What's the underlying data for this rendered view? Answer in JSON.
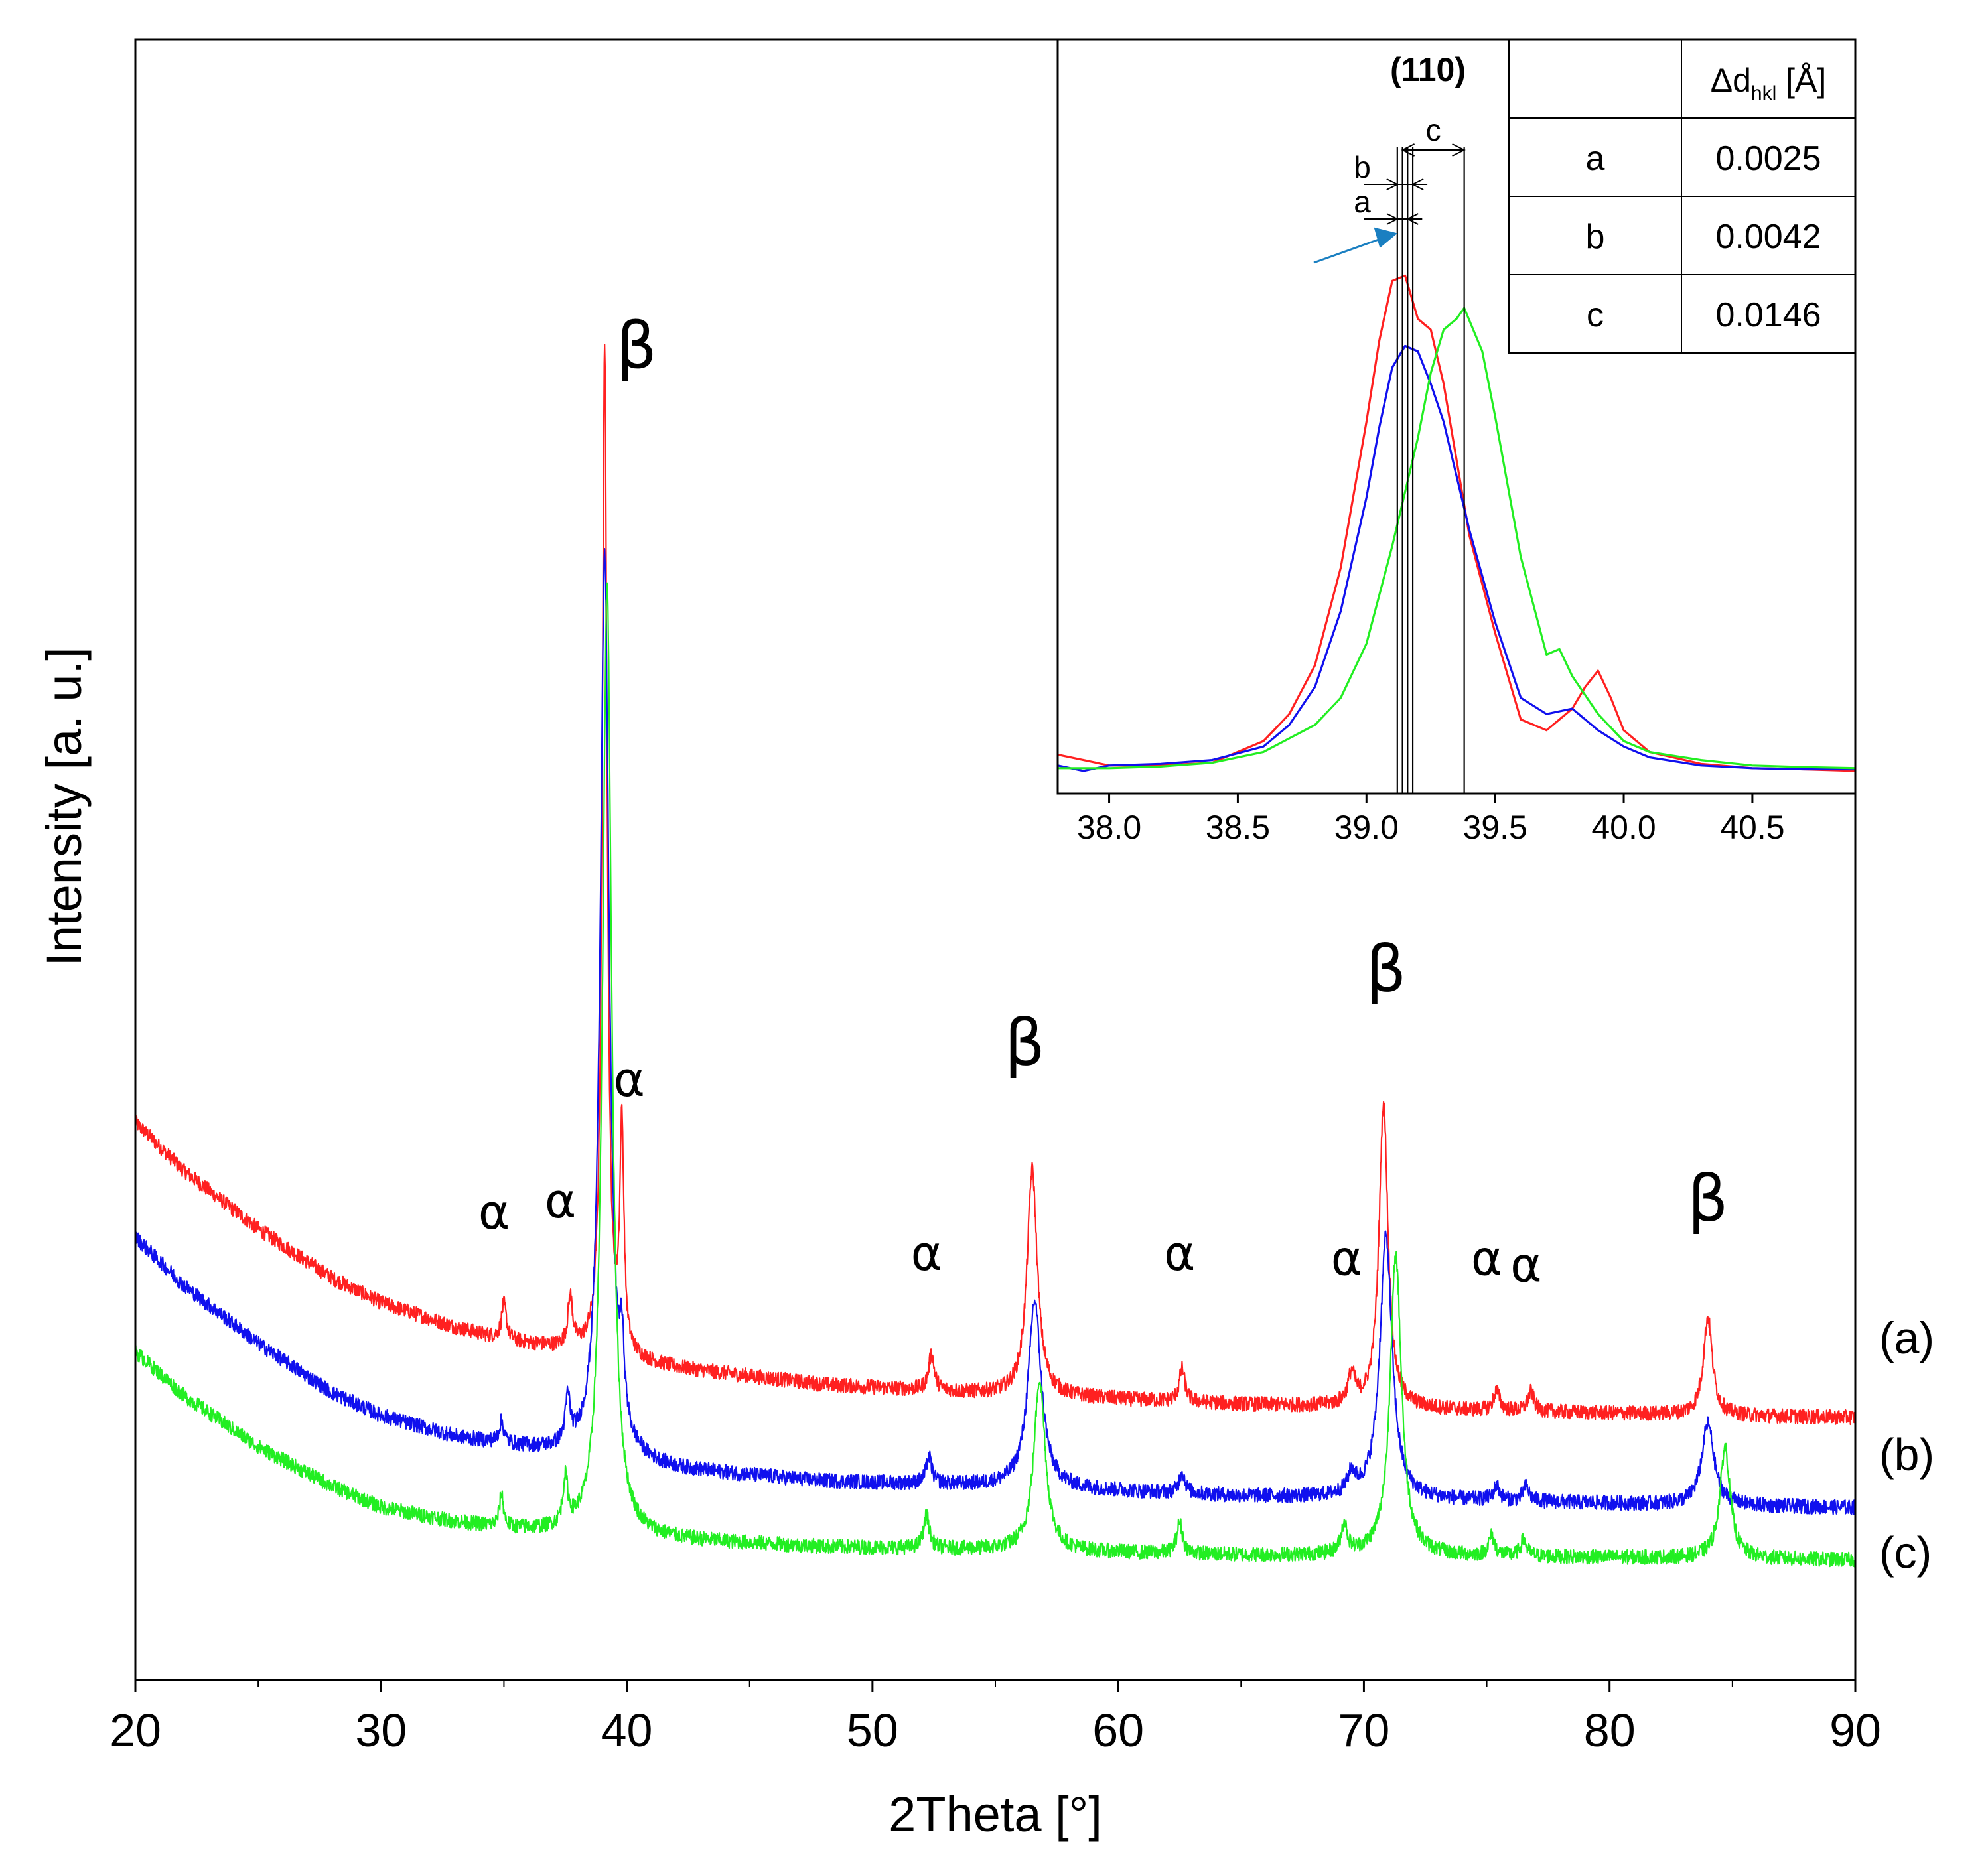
{
  "chart_data": [
    {
      "type": "line",
      "title": "",
      "xlabel": "2Theta [°]",
      "ylabel": "Intensity [a. u.]",
      "xlim": [
        20,
        90
      ],
      "ylim": [
        0,
        100
      ],
      "x_ticks": [
        "20",
        "30",
        "40",
        "50",
        "60",
        "70",
        "80",
        "90"
      ],
      "yticks_shown": false,
      "baseline_points": {
        "x": [
          20,
          22,
          25,
          28,
          30,
          33,
          35,
          38,
          42,
          48,
          55,
          65,
          75,
          85,
          90
        ],
        "a": [
          34,
          31,
          27.5,
          24.5,
          23,
          21.5,
          20.7,
          20,
          19,
          18,
          17.4,
          16.8,
          16.4,
          16.1,
          16
        ],
        "b": [
          27,
          24,
          20.5,
          17.5,
          16.1,
          14.8,
          14.3,
          13.6,
          12.8,
          12.1,
          11.8,
          11.2,
          10.9,
          10.6,
          10.5
        ],
        "c": [
          20,
          17.3,
          14.2,
          11.8,
          10.5,
          9.6,
          9.2,
          8.8,
          8.5,
          8.1,
          7.9,
          7.6,
          7.5,
          7.4,
          7.3
        ]
      },
      "series": [
        {
          "name": "(a)",
          "color": "#ff2020",
          "peaks": [
            {
              "x": 35.0,
              "h": 2.2,
              "w": 0.12
            },
            {
              "x": 37.7,
              "h": 3.0,
              "w": 0.12
            },
            {
              "x": 39.1,
              "h": 61,
              "w": 0.12
            },
            {
              "x": 39.8,
              "h": 13.5,
              "w": 0.1
            },
            {
              "x": 52.4,
              "h": 2.2,
              "w": 0.14
            },
            {
              "x": 56.5,
              "h": 13.8,
              "w": 0.25
            },
            {
              "x": 62.6,
              "h": 2.0,
              "w": 0.14
            },
            {
              "x": 69.5,
              "h": 1.8,
              "w": 0.18
            },
            {
              "x": 70.8,
              "h": 18.6,
              "w": 0.22
            },
            {
              "x": 75.4,
              "h": 1.2,
              "w": 0.15
            },
            {
              "x": 76.8,
              "h": 1.2,
              "w": 0.15
            },
            {
              "x": 84.0,
              "h": 6.0,
              "w": 0.22
            }
          ]
        },
        {
          "name": "(b)",
          "color": "#1010ee",
          "peaks": [
            {
              "x": 34.9,
              "h": 1.3,
              "w": 0.12
            },
            {
              "x": 37.6,
              "h": 2.8,
              "w": 0.12
            },
            {
              "x": 39.1,
              "h": 55,
              "w": 0.22
            },
            {
              "x": 39.8,
              "h": 4.5,
              "w": 0.12
            },
            {
              "x": 52.3,
              "h": 1.6,
              "w": 0.14
            },
            {
              "x": 56.6,
              "h": 11.4,
              "w": 0.32
            },
            {
              "x": 62.6,
              "h": 1.3,
              "w": 0.14
            },
            {
              "x": 69.5,
              "h": 1.2,
              "w": 0.2
            },
            {
              "x": 70.9,
              "h": 16.0,
              "w": 0.3
            },
            {
              "x": 75.4,
              "h": 0.9,
              "w": 0.15
            },
            {
              "x": 76.6,
              "h": 0.9,
              "w": 0.15
            },
            {
              "x": 84.0,
              "h": 5.0,
              "w": 0.3
            }
          ]
        },
        {
          "name": "(c)",
          "color": "#22ee22",
          "peaks": [
            {
              "x": 34.9,
              "h": 2.0,
              "w": 0.1
            },
            {
              "x": 37.5,
              "h": 2.8,
              "w": 0.12
            },
            {
              "x": 39.2,
              "h": 58,
              "w": 0.22
            },
            {
              "x": 52.2,
              "h": 2.0,
              "w": 0.14
            },
            {
              "x": 56.8,
              "h": 10.5,
              "w": 0.28
            },
            {
              "x": 62.5,
              "h": 1.9,
              "w": 0.14
            },
            {
              "x": 69.2,
              "h": 1.8,
              "w": 0.15
            },
            {
              "x": 71.3,
              "h": 18.3,
              "w": 0.28
            },
            {
              "x": 75.2,
              "h": 1.2,
              "w": 0.15
            },
            {
              "x": 76.5,
              "h": 1.0,
              "w": 0.15
            },
            {
              "x": 84.7,
              "h": 6.8,
              "w": 0.25
            }
          ]
        }
      ],
      "phase_labels": [
        {
          "text": "α",
          "x": 34.6,
          "y": 27.5,
          "size": "small"
        },
        {
          "text": "α",
          "x": 37.3,
          "y": 28.2,
          "size": "small"
        },
        {
          "text": "β",
          "x": 40.4,
          "y": 80,
          "size": "large"
        },
        {
          "text": "α",
          "x": 40.1,
          "y": 35.6,
          "size": "small"
        },
        {
          "text": "α",
          "x": 52.2,
          "y": 25,
          "size": "small"
        },
        {
          "text": "β",
          "x": 56.2,
          "y": 37.5,
          "size": "large"
        },
        {
          "text": "α",
          "x": 62.5,
          "y": 25,
          "size": "small"
        },
        {
          "text": "α",
          "x": 69.3,
          "y": 24.7,
          "size": "small"
        },
        {
          "text": "β",
          "x": 70.9,
          "y": 42,
          "size": "large"
        },
        {
          "text": "α",
          "x": 75.0,
          "y": 24.7,
          "size": "small"
        },
        {
          "text": "α",
          "x": 76.6,
          "y": 24.3,
          "size": "small"
        },
        {
          "text": "β",
          "x": 84.0,
          "y": 28,
          "size": "large"
        }
      ],
      "curve_labels": [
        {
          "text": "(a)",
          "y": 20.8
        },
        {
          "text": "(b)",
          "y": 13.7
        },
        {
          "text": "(c)",
          "y": 7.7
        }
      ]
    },
    {
      "type": "line",
      "title": "(110)",
      "xlabel": "",
      "ylabel": "",
      "xlim": [
        37.8,
        40.9
      ],
      "ylim": [
        0,
        100
      ],
      "x_ticks": [
        "38.0",
        "38.5",
        "39.0",
        "39.5",
        "40.0",
        "40.5"
      ],
      "series": [
        {
          "name": "a",
          "color": "#ff2020",
          "x": [
            37.8,
            37.9,
            38.0,
            38.2,
            38.4,
            38.6,
            38.7,
            38.8,
            38.9,
            39.0,
            39.05,
            39.1,
            39.15,
            39.2,
            39.25,
            39.3,
            39.4,
            39.5,
            39.6,
            39.7,
            39.8,
            39.85,
            39.9,
            39.95,
            40.0,
            40.1,
            40.3,
            40.5,
            40.7,
            40.9
          ],
          "y": [
            3.5,
            2.5,
            1.5,
            1.5,
            2,
            6,
            11,
            20,
            38,
            65,
            80,
            91,
            92,
            84,
            82,
            72,
            44,
            26,
            10,
            8,
            12,
            16,
            19,
            14,
            8,
            4,
            1.8,
            1,
            0.8,
            0.5
          ]
        },
        {
          "name": "b",
          "color": "#1010ee",
          "x": [
            37.8,
            37.9,
            38.0,
            38.2,
            38.4,
            38.6,
            38.7,
            38.8,
            38.9,
            39.0,
            39.05,
            39.1,
            39.15,
            39.2,
            39.25,
            39.3,
            39.4,
            39.5,
            39.6,
            39.7,
            39.8,
            39.85,
            39.9,
            40.0,
            40.1,
            40.3,
            40.5,
            40.7,
            40.9
          ],
          "y": [
            1.5,
            0.5,
            1.5,
            1.8,
            2.5,
            5,
            9,
            16,
            30,
            51,
            64,
            75,
            79,
            78,
            72,
            65,
            45,
            28,
            14,
            11,
            12,
            10,
            8,
            5,
            3,
            1.5,
            1,
            0.8,
            0.8
          ]
        },
        {
          "name": "c",
          "color": "#22ee22",
          "x": [
            37.8,
            38.0,
            38.2,
            38.4,
            38.6,
            38.8,
            38.9,
            39.0,
            39.1,
            39.2,
            39.25,
            39.3,
            39.35,
            39.38,
            39.45,
            39.5,
            39.6,
            39.7,
            39.75,
            39.8,
            39.9,
            40.0,
            40.1,
            40.3,
            40.5,
            40.7,
            40.9
          ],
          "y": [
            1,
            1,
            1.3,
            2,
            4,
            9,
            14,
            24,
            42,
            62,
            74,
            82,
            84,
            86,
            78,
            66,
            40,
            22,
            23,
            18,
            11,
            6,
            4,
            2.5,
            1.5,
            1.2,
            1
          ]
        }
      ],
      "markers": [
        {
          "label": "a",
          "x1": 39.12,
          "x2": 39.16
        },
        {
          "label": "b",
          "x1": 39.12,
          "x2": 39.18
        },
        {
          "label": "c",
          "x1": 39.14,
          "x2": 39.38
        }
      ],
      "arrow_color": "#1a7fc1",
      "table": {
        "header": [
          "",
          "Δd",
          "hkl",
          " [Å]"
        ],
        "rows": [
          [
            "a",
            "0.0025"
          ],
          [
            "b",
            "0.0042"
          ],
          [
            "c",
            "0.0146"
          ]
        ]
      }
    }
  ]
}
